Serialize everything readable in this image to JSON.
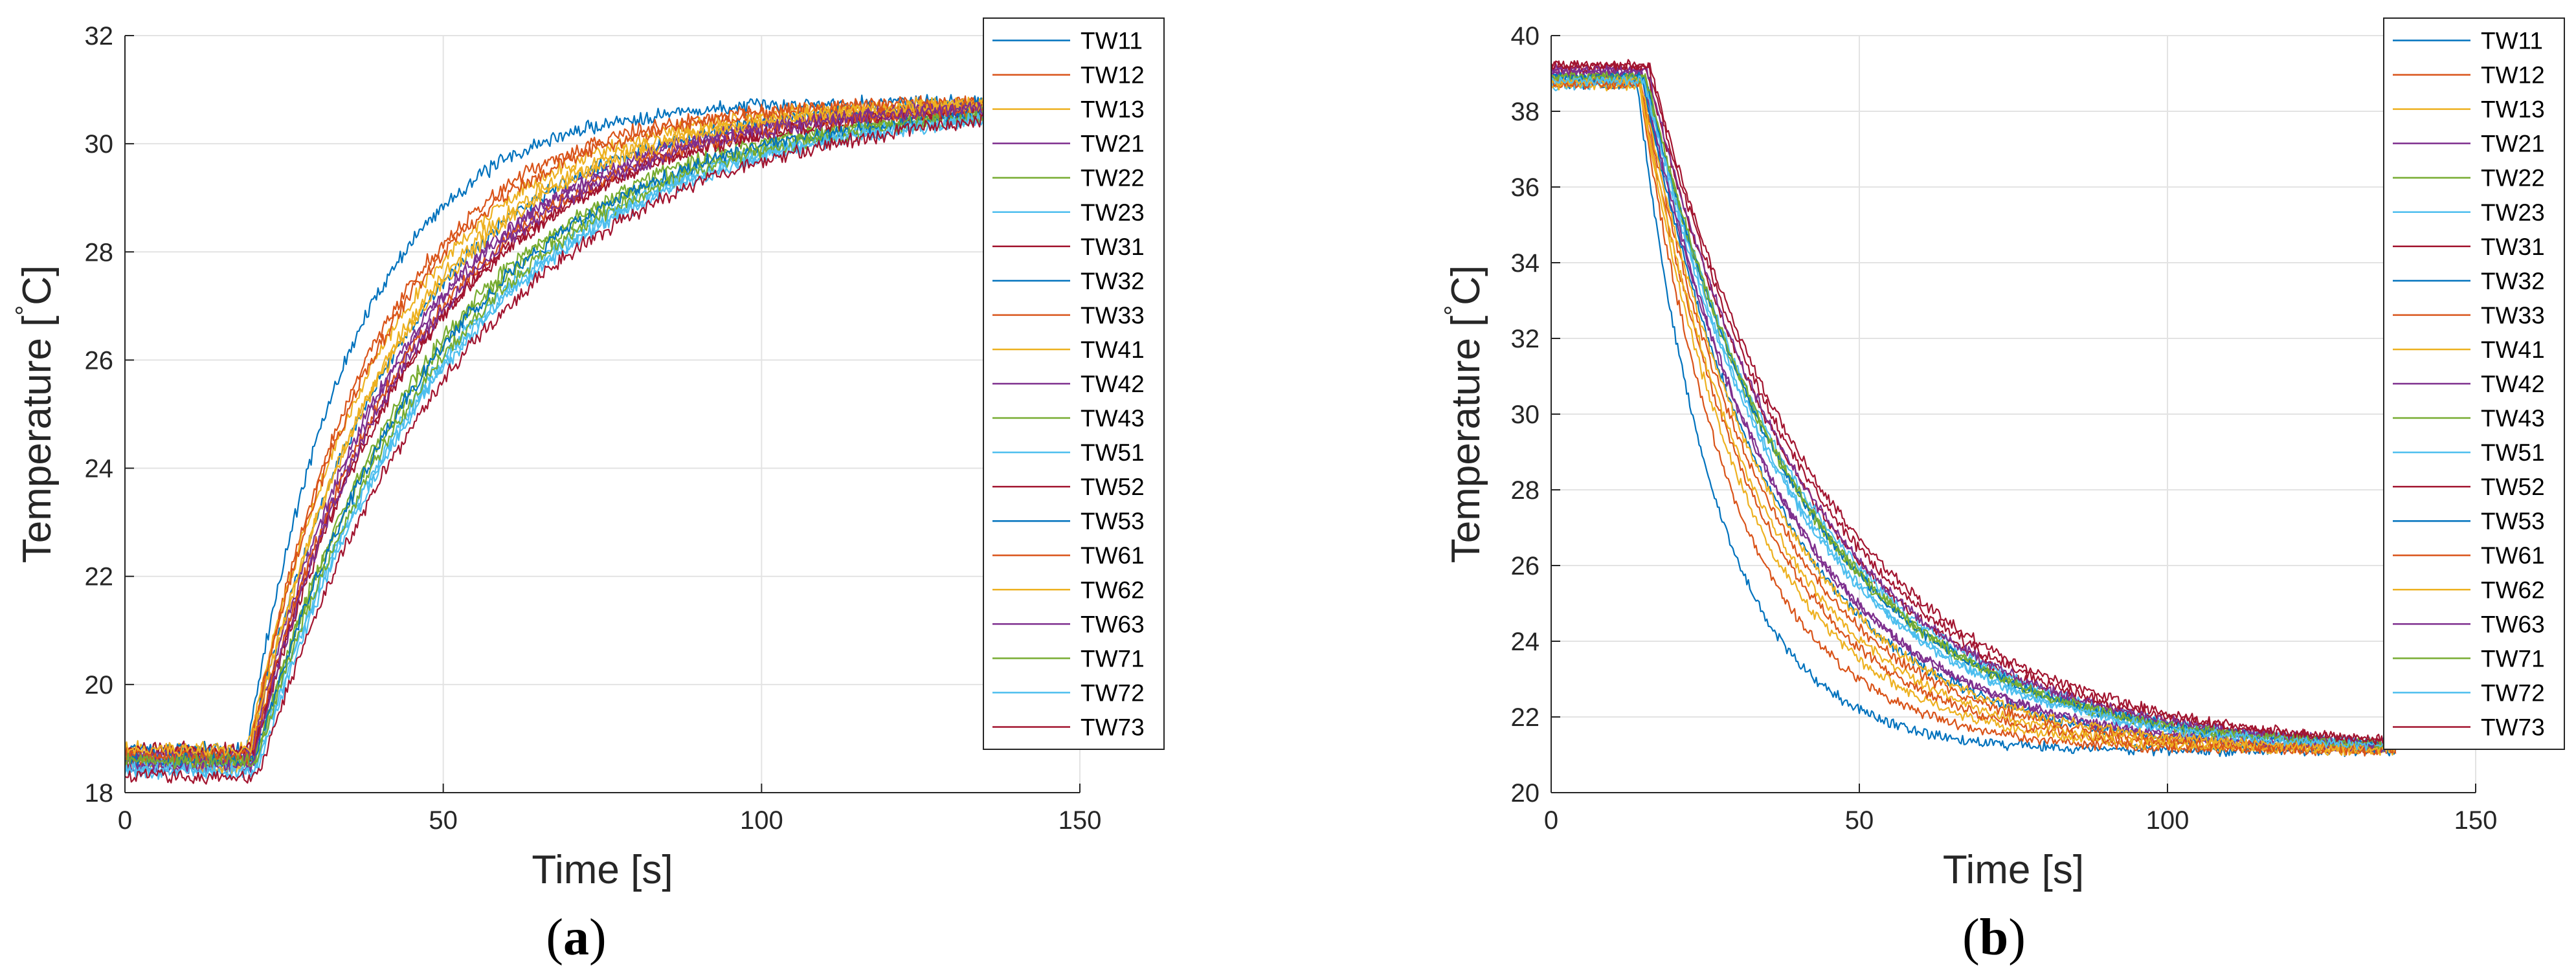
{
  "chart_data": [
    {
      "type": "line",
      "panel_label": "a",
      "xlabel": "Time [s]",
      "ylabel_main": "Temperature [",
      "ylabel_degree": "°",
      "ylabel_unit": "C]",
      "xlim": [
        0,
        150
      ],
      "ylim": [
        18,
        32
      ],
      "xticks": [
        0,
        50,
        100,
        150
      ],
      "yticks": [
        18,
        20,
        22,
        24,
        26,
        28,
        30,
        32
      ],
      "grid": true,
      "legend_position": "top-right",
      "model": {
        "kind": "rise",
        "t_start_range": [
          19,
          22
        ],
        "end_value": 30.8
      },
      "series": [
        {
          "name": "TW11",
          "color": "#0072BD",
          "start": 18.7,
          "t_start": 19.0,
          "tau": 17
        },
        {
          "name": "TW12",
          "color": "#D95319",
          "start": 18.6,
          "t_start": 19.3,
          "tau": 20
        },
        {
          "name": "TW13",
          "color": "#EDB120",
          "start": 18.8,
          "t_start": 19.2,
          "tau": 22
        },
        {
          "name": "TW21",
          "color": "#7E2F8E",
          "start": 18.5,
          "t_start": 19.8,
          "tau": 25
        },
        {
          "name": "TW22",
          "color": "#77AC30",
          "start": 18.6,
          "t_start": 20.3,
          "tau": 30
        },
        {
          "name": "TW23",
          "color": "#4DBEEE",
          "start": 18.4,
          "t_start": 20.5,
          "tau": 31
        },
        {
          "name": "TW31",
          "color": "#A2142F",
          "start": 18.6,
          "t_start": 20.0,
          "tau": 27
        },
        {
          "name": "TW32",
          "color": "#0072BD",
          "start": 18.8,
          "t_start": 19.6,
          "tau": 24
        },
        {
          "name": "TW33",
          "color": "#D95319",
          "start": 18.7,
          "t_start": 19.4,
          "tau": 21
        },
        {
          "name": "TW41",
          "color": "#EDB120",
          "start": 18.5,
          "t_start": 19.5,
          "tau": 23
        },
        {
          "name": "TW42",
          "color": "#7E2F8E",
          "start": 18.7,
          "t_start": 19.7,
          "tau": 25
        },
        {
          "name": "TW43",
          "color": "#77AC30",
          "start": 18.6,
          "t_start": 20.4,
          "tau": 29
        },
        {
          "name": "TW51",
          "color": "#4DBEEE",
          "start": 18.5,
          "t_start": 20.6,
          "tau": 32
        },
        {
          "name": "TW52",
          "color": "#A2142F",
          "start": 18.8,
          "t_start": 20.1,
          "tau": 27
        },
        {
          "name": "TW53",
          "color": "#0072BD",
          "start": 18.6,
          "t_start": 20.4,
          "tau": 30
        },
        {
          "name": "TW61",
          "color": "#D95319",
          "start": 18.7,
          "t_start": 19.9,
          "tau": 26
        },
        {
          "name": "TW62",
          "color": "#EDB120",
          "start": 18.8,
          "t_start": 19.6,
          "tau": 24
        },
        {
          "name": "TW63",
          "color": "#7E2F8E",
          "start": 18.5,
          "t_start": 19.9,
          "tau": 26
        },
        {
          "name": "TW71",
          "color": "#77AC30",
          "start": 18.6,
          "t_start": 20.7,
          "tau": 31
        },
        {
          "name": "TW72",
          "color": "#4DBEEE",
          "start": 18.4,
          "t_start": 20.8,
          "tau": 32
        },
        {
          "name": "TW73",
          "color": "#A2142F",
          "start": 18.3,
          "t_start": 21.0,
          "tau": 33
        }
      ]
    },
    {
      "type": "line",
      "panel_label": "b",
      "xlabel": "Time [s]",
      "ylabel_main": "Temperature [",
      "ylabel_degree": "°",
      "ylabel_unit": "C]",
      "xlim": [
        0,
        150
      ],
      "ylim": [
        20,
        40
      ],
      "xticks": [
        0,
        50,
        100,
        150
      ],
      "yticks": [
        20,
        22,
        24,
        26,
        28,
        30,
        32,
        34,
        36,
        38,
        40
      ],
      "grid": true,
      "legend_position": "top-right",
      "model": {
        "kind": "fall",
        "t_start_range": [
          14,
          16
        ],
        "end_value": 21.1
      },
      "series": [
        {
          "name": "TW11",
          "color": "#0072BD",
          "start": 38.7,
          "t_start": 14.0,
          "tau": 13
        },
        {
          "name": "TW12",
          "color": "#D95319",
          "start": 38.8,
          "t_start": 14.2,
          "tau": 16
        },
        {
          "name": "TW13",
          "color": "#EDB120",
          "start": 38.9,
          "t_start": 14.1,
          "tau": 18
        },
        {
          "name": "TW21",
          "color": "#7E2F8E",
          "start": 39.0,
          "t_start": 14.6,
          "tau": 23
        },
        {
          "name": "TW22",
          "color": "#77AC30",
          "start": 38.8,
          "t_start": 15.2,
          "tau": 26
        },
        {
          "name": "TW23",
          "color": "#4DBEEE",
          "start": 38.7,
          "t_start": 15.0,
          "tau": 25
        },
        {
          "name": "TW31",
          "color": "#A2142F",
          "start": 39.1,
          "t_start": 15.5,
          "tau": 27
        },
        {
          "name": "TW32",
          "color": "#0072BD",
          "start": 38.9,
          "t_start": 14.7,
          "tau": 22
        },
        {
          "name": "TW33",
          "color": "#D95319",
          "start": 38.8,
          "t_start": 14.4,
          "tau": 19
        },
        {
          "name": "TW41",
          "color": "#EDB120",
          "start": 38.7,
          "t_start": 14.3,
          "tau": 20
        },
        {
          "name": "TW42",
          "color": "#7E2F8E",
          "start": 39.0,
          "t_start": 14.8,
          "tau": 23
        },
        {
          "name": "TW43",
          "color": "#77AC30",
          "start": 38.9,
          "t_start": 15.3,
          "tau": 26
        },
        {
          "name": "TW51",
          "color": "#4DBEEE",
          "start": 38.8,
          "t_start": 15.1,
          "tau": 27
        },
        {
          "name": "TW52",
          "color": "#A2142F",
          "start": 39.2,
          "t_start": 15.8,
          "tau": 28
        },
        {
          "name": "TW53",
          "color": "#0072BD",
          "start": 38.9,
          "t_start": 15.2,
          "tau": 26
        },
        {
          "name": "TW61",
          "color": "#D95319",
          "start": 38.7,
          "t_start": 14.6,
          "tau": 21
        },
        {
          "name": "TW62",
          "color": "#EDB120",
          "start": 38.8,
          "t_start": 14.5,
          "tau": 22
        },
        {
          "name": "TW63",
          "color": "#7E2F8E",
          "start": 39.1,
          "t_start": 15.6,
          "tau": 27
        },
        {
          "name": "TW71",
          "color": "#77AC30",
          "start": 38.9,
          "t_start": 15.4,
          "tau": 26
        },
        {
          "name": "TW72",
          "color": "#4DBEEE",
          "start": 38.8,
          "t_start": 15.2,
          "tau": 25
        },
        {
          "name": "TW73",
          "color": "#A2142F",
          "start": 39.2,
          "t_start": 16.0,
          "tau": 29
        }
      ]
    }
  ]
}
